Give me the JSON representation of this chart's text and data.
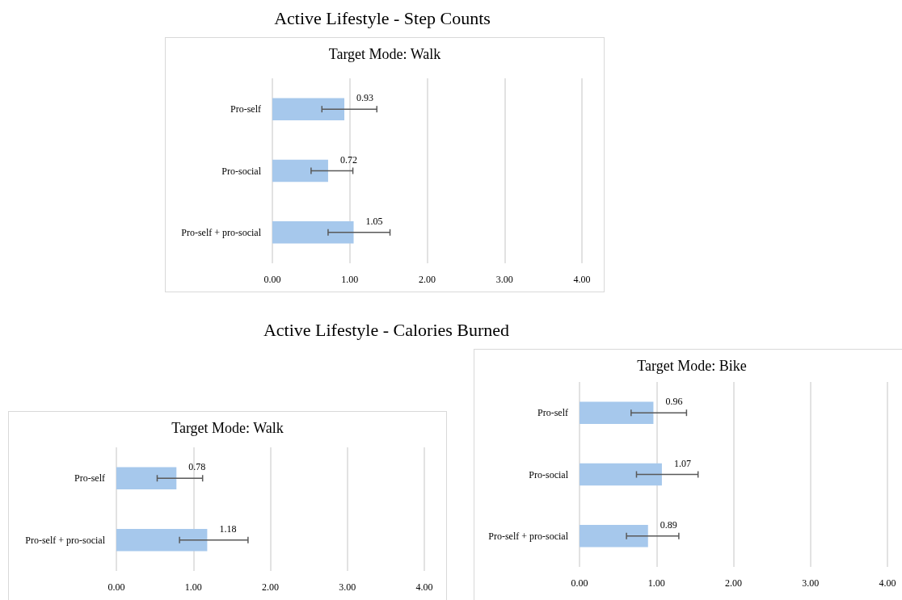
{
  "chart_data": [
    {
      "type": "bar",
      "orientation": "horizontal",
      "title": "Active Lifestyle - Step Counts",
      "subtitle": "Target Mode: Walk",
      "categories": [
        "Pro-self",
        "Pro-social",
        "Pro-self + pro-social"
      ],
      "values": [
        0.93,
        0.72,
        1.05
      ],
      "errors": [
        [
          0.64,
          1.35
        ],
        [
          0.5,
          1.04
        ],
        [
          0.72,
          1.52
        ]
      ],
      "color": "#a6c8ec",
      "data_labels": true,
      "xlim": [
        0,
        4
      ],
      "xticks": [
        {
          "value": 0,
          "label": "0.00"
        },
        {
          "value": 1,
          "label": "1.00"
        },
        {
          "value": 2,
          "label": "2.00"
        },
        {
          "value": 3,
          "label": "3.00"
        },
        {
          "value": 4,
          "label": "4.00"
        }
      ],
      "grid": "x"
    },
    {
      "type": "bar",
      "orientation": "horizontal",
      "title": "Active Lifestyle - Calories Burned",
      "subtitle": "Target Mode: Walk",
      "categories": [
        "Pro-self",
        "Pro-self + pro-social"
      ],
      "values": [
        0.78,
        1.18
      ],
      "errors": [
        [
          0.53,
          1.12
        ],
        [
          0.82,
          1.71
        ]
      ],
      "color": "#a6c8ec",
      "data_labels": true,
      "xlim": [
        0,
        4
      ],
      "xticks": [
        {
          "value": 0,
          "label": "0.00"
        },
        {
          "value": 1,
          "label": "1.00"
        },
        {
          "value": 2,
          "label": "2.00"
        },
        {
          "value": 3,
          "label": "3.00"
        },
        {
          "value": 4,
          "label": "4.00"
        }
      ],
      "grid": "x"
    },
    {
      "type": "bar",
      "orientation": "horizontal",
      "subtitle": "Target Mode: Bike",
      "categories": [
        "Pro-self",
        "Pro-social",
        "Pro-self + pro-social"
      ],
      "values": [
        0.96,
        1.07,
        0.89
      ],
      "errors": [
        [
          0.67,
          1.39
        ],
        [
          0.74,
          1.54
        ],
        [
          0.61,
          1.29
        ]
      ],
      "color": "#a6c8ec",
      "data_labels": true,
      "xlim": [
        0,
        4
      ],
      "xticks": [
        {
          "value": 0,
          "label": "0.00"
        },
        {
          "value": 1,
          "label": "1.00"
        },
        {
          "value": 2,
          "label": "2.00"
        },
        {
          "value": 3,
          "label": "3.00"
        },
        {
          "value": 4,
          "label": "4.00"
        }
      ],
      "grid": "x"
    }
  ]
}
